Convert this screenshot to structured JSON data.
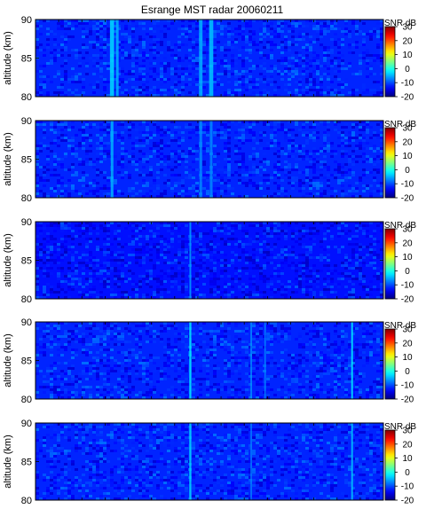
{
  "title": "Esrange MST radar 20060211",
  "chart_data": [
    {
      "type": "heatmap",
      "title": "Esrange MST radar 20060211",
      "ylabel": "altitude (km)",
      "ylim": [
        80,
        90
      ],
      "yticks": [
        "90",
        "85",
        "80"
      ],
      "colorbar": {
        "label": "SNR dB",
        "range": [
          -20,
          30
        ],
        "ticks": [
          "30",
          "20",
          "10",
          "0",
          "-10",
          "-20"
        ]
      },
      "background_snr_db": -12,
      "features": [
        {
          "x": 0.22,
          "width": 0.012,
          "snr_db": -3
        },
        {
          "x": 0.235,
          "width": 0.008,
          "snr_db": -5
        },
        {
          "x": 0.475,
          "width": 0.01,
          "snr_db": -5
        },
        {
          "x": 0.505,
          "width": 0.012,
          "snr_db": -4
        }
      ]
    },
    {
      "type": "heatmap",
      "ylabel": "altitude (km)",
      "ylim": [
        80,
        90
      ],
      "yticks": [
        "90",
        "85",
        "80"
      ],
      "colorbar": {
        "label": "SNR dB",
        "range": [
          -20,
          30
        ],
        "ticks": [
          "30",
          "20",
          "10",
          "0",
          "-10",
          "-20"
        ]
      },
      "background_snr_db": -12,
      "features": [
        {
          "x": 0.22,
          "width": 0.008,
          "snr_db": -5
        },
        {
          "x": 0.475,
          "width": 0.008,
          "snr_db": -7
        },
        {
          "x": 0.505,
          "width": 0.008,
          "snr_db": -7
        }
      ]
    },
    {
      "type": "heatmap",
      "ylabel": "altitude (km)",
      "ylim": [
        80,
        90
      ],
      "yticks": [
        "90",
        "85",
        "80"
      ],
      "colorbar": {
        "label": "SNR dB",
        "range": [
          -20,
          30
        ],
        "ticks": [
          "30",
          "20",
          "10",
          "0",
          "-10",
          "-20"
        ]
      },
      "background_snr_db": -13,
      "features": [
        {
          "x": 0.445,
          "width": 0.005,
          "snr_db": -6
        }
      ]
    },
    {
      "type": "heatmap",
      "ylabel": "altitude (km)",
      "ylim": [
        80,
        90
      ],
      "yticks": [
        "90",
        "85",
        "80"
      ],
      "colorbar": {
        "label": "SNR dB",
        "range": [
          -20,
          30
        ],
        "ticks": [
          "30",
          "20",
          "10",
          "0",
          "-10",
          "-20"
        ]
      },
      "background_snr_db": -12,
      "features": [
        {
          "x": 0.445,
          "width": 0.006,
          "snr_db": -2
        },
        {
          "x": 0.62,
          "width": 0.004,
          "snr_db": -6
        },
        {
          "x": 0.66,
          "width": 0.004,
          "snr_db": -7
        },
        {
          "x": 0.91,
          "width": 0.005,
          "snr_db": -2
        }
      ]
    },
    {
      "type": "heatmap",
      "ylabel": "altitude (km)",
      "ylim": [
        80,
        90
      ],
      "yticks": [
        "90",
        "85",
        "80"
      ],
      "colorbar": {
        "label": "SNR dB",
        "range": [
          -20,
          30
        ],
        "ticks": [
          "30",
          "20",
          "10",
          "0",
          "-10",
          "-20"
        ]
      },
      "background_snr_db": -12,
      "features": [
        {
          "x": 0.445,
          "width": 0.006,
          "snr_db": -3
        },
        {
          "x": 0.62,
          "width": 0.004,
          "snr_db": -7
        },
        {
          "x": 0.91,
          "width": 0.005,
          "snr_db": -4
        }
      ]
    }
  ]
}
